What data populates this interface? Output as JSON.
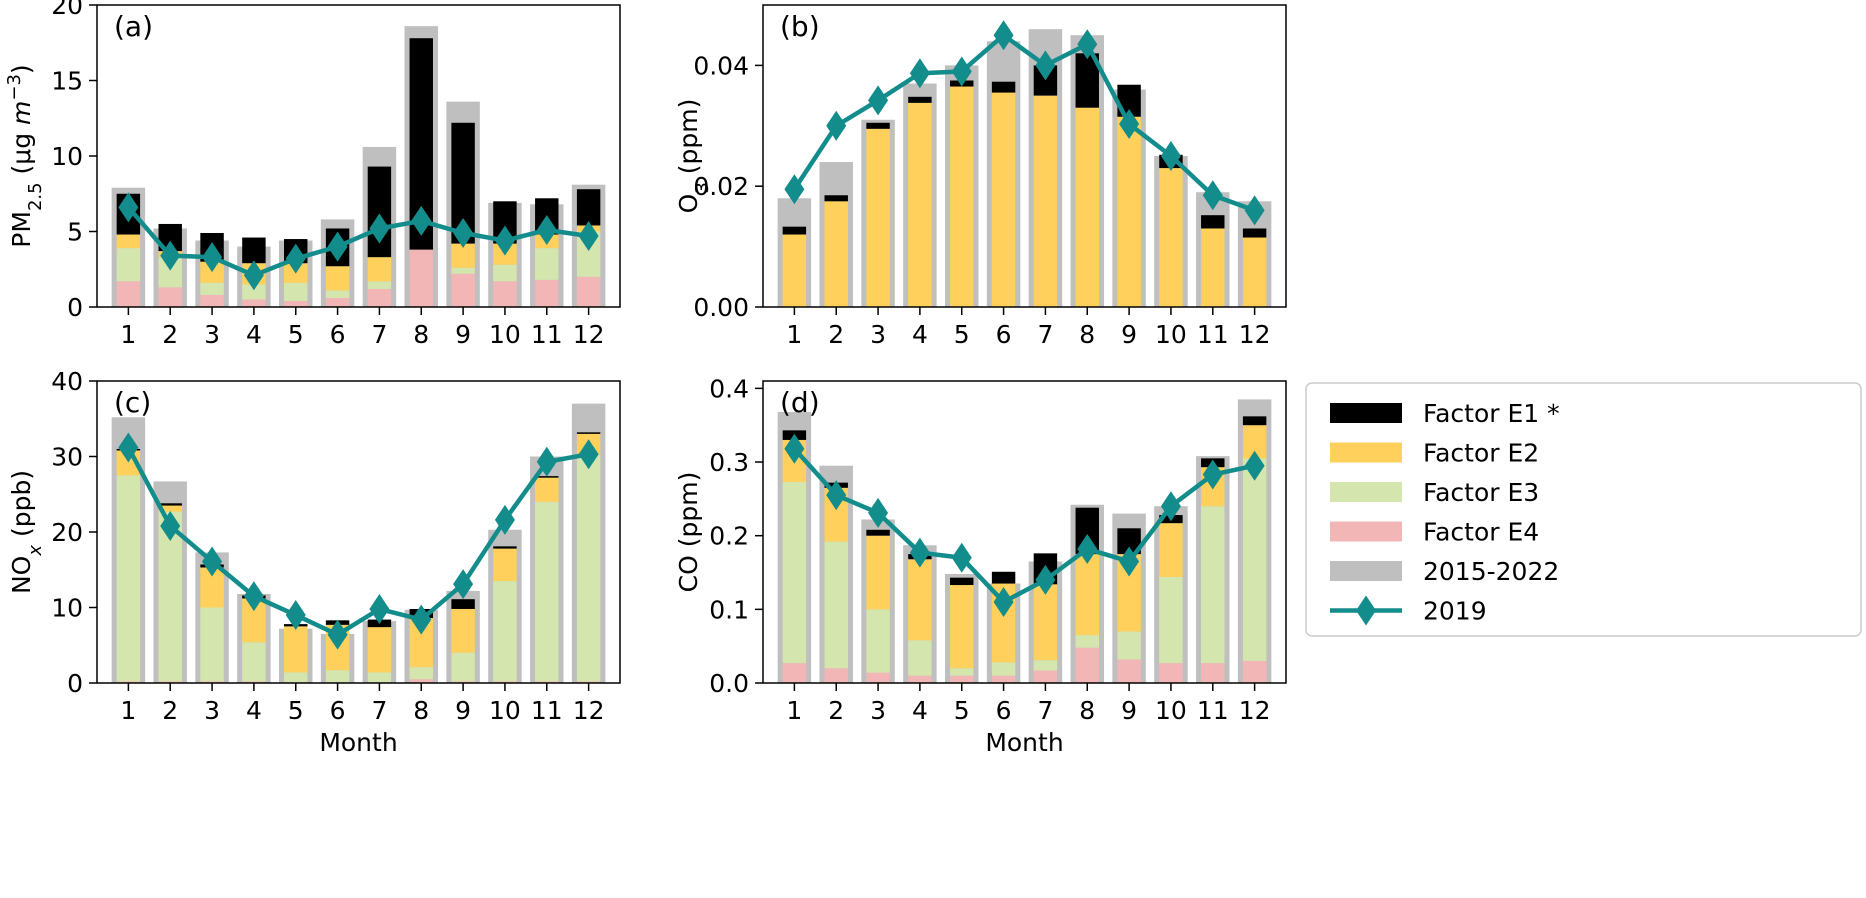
{
  "colors": {
    "E1": "#000000",
    "E2": "#ffd15c",
    "E3": "#d4e6ae",
    "E4": "#f2b6b6",
    "avg": "#bfbfbf",
    "line2019": "#138c8c"
  },
  "legend": {
    "items": [
      {
        "key": "E1",
        "label": "Factor E1 *"
      },
      {
        "key": "E2",
        "label": "Factor E2"
      },
      {
        "key": "E3",
        "label": "Factor E3"
      },
      {
        "key": "E4",
        "label": "Factor E4"
      },
      {
        "key": "avg",
        "label": "2015-2022"
      },
      {
        "key": "line2019",
        "label": "2019"
      }
    ]
  },
  "chart_data": [
    {
      "type": "bar",
      "panel_label": "(a)",
      "ylabel": "PM2.5 (μg m−3)",
      "ylabel_parts": {
        "main": "PM",
        "sub": "2.5",
        "unit_pre": " (μg ",
        "unit_var": "m",
        "unit_sup": "−3",
        "unit_post": ")"
      },
      "xlabel": "",
      "categories": [
        "1",
        "2",
        "3",
        "4",
        "5",
        "6",
        "7",
        "8",
        "9",
        "10",
        "11",
        "12"
      ],
      "ylim": [
        0,
        20
      ],
      "yticks": [
        0,
        5,
        10,
        15,
        20
      ],
      "ytick_labels": [
        "0",
        "5",
        "10",
        "15",
        "20"
      ],
      "avg": [
        7.9,
        5.2,
        4.4,
        4.0,
        4.4,
        5.8,
        10.6,
        18.6,
        13.6,
        6.9,
        6.8,
        8.1
      ],
      "stack": {
        "E4": [
          1.7,
          1.3,
          0.8,
          0.5,
          0.4,
          0.6,
          1.2,
          3.8,
          2.2,
          1.7,
          1.8,
          2.0
        ],
        "E3": [
          2.2,
          2.0,
          0.8,
          1.0,
          1.2,
          0.5,
          0.5,
          0.0,
          0.4,
          1.1,
          2.1,
          3.0
        ],
        "E2": [
          0.9,
          0.4,
          1.4,
          1.4,
          1.3,
          1.6,
          1.6,
          0.0,
          1.6,
          1.4,
          0.9,
          0.4
        ],
        "E1": [
          2.7,
          1.8,
          1.9,
          1.7,
          1.6,
          2.5,
          6.0,
          14.0,
          8.0,
          2.8,
          2.4,
          2.4
        ]
      },
      "line2019": [
        6.6,
        3.4,
        3.3,
        2.1,
        3.2,
        4.0,
        5.2,
        5.7,
        4.9,
        4.4,
        5.1,
        4.7
      ]
    },
    {
      "type": "bar",
      "panel_label": "(b)",
      "ylabel": "O3 (ppm)",
      "ylabel_parts": {
        "main": "O",
        "sub": "3",
        "unit_pre": " (ppm)",
        "unit_var": "",
        "unit_sup": "",
        "unit_post": ""
      },
      "xlabel": "",
      "categories": [
        "1",
        "2",
        "3",
        "4",
        "5",
        "6",
        "7",
        "8",
        "9",
        "10",
        "11",
        "12"
      ],
      "ylim": [
        0,
        0.05
      ],
      "yticks": [
        0,
        0.02,
        0.04
      ],
      "ytick_labels": [
        "0.00",
        "0.02",
        "0.04"
      ],
      "avg": [
        0.018,
        0.024,
        0.031,
        0.037,
        0.04,
        0.044,
        0.046,
        0.045,
        0.036,
        0.025,
        0.019,
        0.0175
      ],
      "stack": {
        "E4": [
          0,
          0,
          0,
          0,
          0,
          0,
          0,
          0,
          0,
          0,
          0,
          0
        ],
        "E3": [
          0,
          0,
          0,
          0,
          0,
          0,
          0,
          0,
          0,
          0,
          0,
          0
        ],
        "E2": [
          0.012,
          0.0175,
          0.0295,
          0.0338,
          0.0365,
          0.0355,
          0.035,
          0.033,
          0.0315,
          0.023,
          0.013,
          0.0115
        ],
        "E1": [
          0.0013,
          0.001,
          0.001,
          0.001,
          0.001,
          0.0018,
          0.005,
          0.009,
          0.0053,
          0.0022,
          0.0022,
          0.0015
        ]
      },
      "line2019": [
        0.0195,
        0.03,
        0.0342,
        0.0387,
        0.039,
        0.045,
        0.04,
        0.0435,
        0.0303,
        0.025,
        0.0185,
        0.016
      ]
    },
    {
      "type": "bar",
      "panel_label": "(c)",
      "ylabel": "NOx (ppb)",
      "ylabel_parts": {
        "main": "NO",
        "sub": "x",
        "unit_pre": " (ppb)",
        "unit_var": "",
        "unit_sup": "",
        "unit_post": ""
      },
      "xlabel": "Month",
      "categories": [
        "1",
        "2",
        "3",
        "4",
        "5",
        "6",
        "7",
        "8",
        "9",
        "10",
        "11",
        "12"
      ],
      "ylim": [
        0,
        40
      ],
      "yticks": [
        0,
        10,
        20,
        30,
        40
      ],
      "ytick_labels": [
        "0",
        "10",
        "20",
        "30",
        "40"
      ],
      "avg": [
        35.2,
        26.7,
        17.3,
        11.8,
        7.2,
        6.5,
        8.2,
        9.7,
        12.2,
        20.3,
        30.0,
        37.0
      ],
      "stack": {
        "E4": [
          0.2,
          0.2,
          0.2,
          0.2,
          0.1,
          0.1,
          0.1,
          0.5,
          0.2,
          0.2,
          0.2,
          0.2
        ],
        "E3": [
          27.3,
          22.5,
          9.8,
          5.2,
          1.3,
          1.6,
          1.3,
          1.6,
          3.8,
          13.3,
          23.8,
          30.0
        ],
        "E2": [
          3.3,
          0.8,
          5.3,
          5.8,
          6.1,
          6.0,
          6.0,
          6.5,
          5.8,
          4.3,
          3.2,
          2.8
        ],
        "E1": [
          0.2,
          0.3,
          0.4,
          0.4,
          0.3,
          0.6,
          1.0,
          1.2,
          1.3,
          0.3,
          0.2,
          0.2
        ]
      },
      "line2019": [
        31.2,
        20.8,
        16.1,
        11.5,
        9.0,
        6.4,
        9.8,
        8.4,
        13.1,
        21.6,
        29.3,
        30.3
      ]
    },
    {
      "type": "bar",
      "panel_label": "(d)",
      "ylabel": "CO (ppm)",
      "ylabel_parts": {
        "main": "CO (ppm)",
        "sub": "",
        "unit_pre": "",
        "unit_var": "",
        "unit_sup": "",
        "unit_post": ""
      },
      "xlabel": "Month",
      "categories": [
        "1",
        "2",
        "3",
        "4",
        "5",
        "6",
        "7",
        "8",
        "9",
        "10",
        "11",
        "12"
      ],
      "ylim": [
        0,
        0.41
      ],
      "yticks": [
        0,
        0.1,
        0.2,
        0.3,
        0.4
      ],
      "ytick_labels": [
        "0.0",
        "0.1",
        "0.2",
        "0.3",
        "0.4"
      ],
      "avg": [
        0.368,
        0.295,
        0.222,
        0.187,
        0.148,
        0.135,
        0.165,
        0.242,
        0.23,
        0.24,
        0.308,
        0.385
      ],
      "stack": {
        "E4": [
          0.027,
          0.02,
          0.014,
          0.01,
          0.01,
          0.01,
          0.017,
          0.048,
          0.032,
          0.027,
          0.027,
          0.03
        ],
        "E3": [
          0.246,
          0.172,
          0.086,
          0.048,
          0.01,
          0.018,
          0.014,
          0.017,
          0.038,
          0.117,
          0.213,
          0.275
        ],
        "E2": [
          0.057,
          0.073,
          0.1,
          0.11,
          0.113,
          0.107,
          0.103,
          0.11,
          0.105,
          0.073,
          0.053,
          0.045
        ],
        "E1": [
          0.013,
          0.007,
          0.008,
          0.007,
          0.01,
          0.016,
          0.042,
          0.063,
          0.035,
          0.011,
          0.012,
          0.012
        ]
      },
      "line2019": [
        0.318,
        0.255,
        0.231,
        0.177,
        0.17,
        0.11,
        0.14,
        0.182,
        0.165,
        0.24,
        0.283,
        0.295
      ]
    }
  ]
}
